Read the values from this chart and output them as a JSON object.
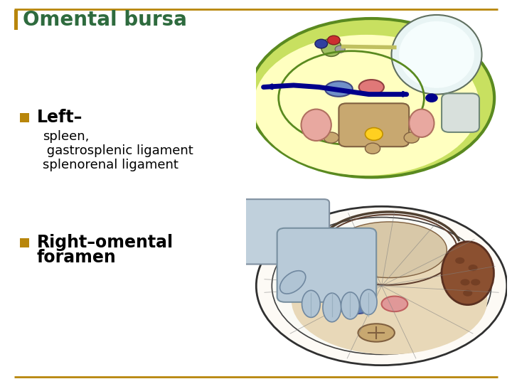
{
  "title": "Omental bursa",
  "title_color": "#2E6B3E",
  "title_fontsize": 20,
  "background_color": "#FFFFFF",
  "border_color": "#B8860B",
  "bullet_color": "#B8860B",
  "bullet1_bold": "Left–",
  "bullet1_sub_lines": [
    "spleen,",
    " gastrosplenic ligament",
    "splenorenal ligament"
  ],
  "bullet2_bold_part1": "Right",
  "bullet2_bold_part2": "–omental",
  "bullet2_line2": "foramen",
  "text_color": "#000000",
  "sub_fontsize": 13,
  "bold_fontsize": 17,
  "title_bar_color": "#B8860B"
}
